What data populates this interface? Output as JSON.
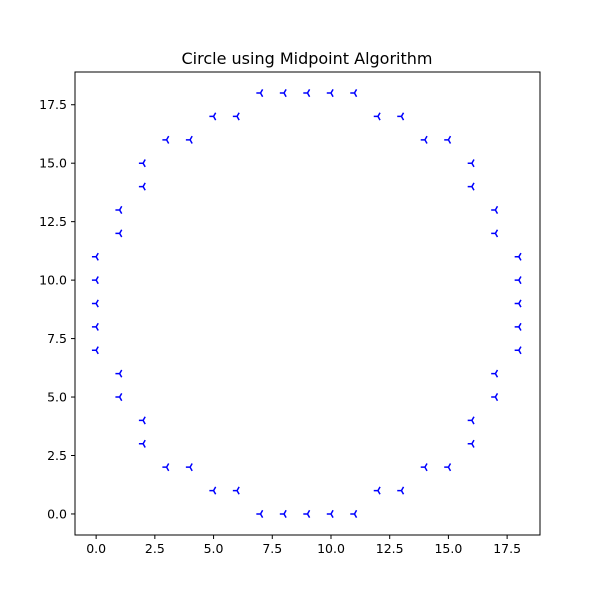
{
  "chart_data": {
    "type": "scatter",
    "title": "Circle using Midpoint Algorithm",
    "xlabel": "",
    "ylabel": "",
    "xlim": [
      -0.9,
      18.9
    ],
    "ylim": [
      -0.9,
      18.9
    ],
    "x_ticks": [
      0.0,
      2.5,
      5.0,
      7.5,
      10.0,
      12.5,
      15.0,
      17.5
    ],
    "x_tick_labels": [
      "0.0",
      "2.5",
      "5.0",
      "7.5",
      "10.0",
      "12.5",
      "15.0",
      "17.5"
    ],
    "y_ticks": [
      0.0,
      2.5,
      5.0,
      7.5,
      10.0,
      12.5,
      15.0,
      17.5
    ],
    "y_tick_labels": [
      "0.0",
      "2.5",
      "5.0",
      "7.5",
      "10.0",
      "12.5",
      "15.0",
      "17.5"
    ],
    "grid": false,
    "marker": "tri-left",
    "color": "#0000ff",
    "points": [
      [
        7,
        18
      ],
      [
        8,
        18
      ],
      [
        9,
        18
      ],
      [
        10,
        18
      ],
      [
        11,
        18
      ],
      [
        5,
        17
      ],
      [
        6,
        17
      ],
      [
        12,
        17
      ],
      [
        13,
        17
      ],
      [
        3,
        16
      ],
      [
        4,
        16
      ],
      [
        14,
        16
      ],
      [
        15,
        16
      ],
      [
        2,
        15
      ],
      [
        16,
        15
      ],
      [
        2,
        14
      ],
      [
        16,
        14
      ],
      [
        1,
        13
      ],
      [
        17,
        13
      ],
      [
        1,
        12
      ],
      [
        17,
        12
      ],
      [
        0,
        11
      ],
      [
        18,
        11
      ],
      [
        0,
        10
      ],
      [
        18,
        10
      ],
      [
        0,
        9
      ],
      [
        18,
        9
      ],
      [
        0,
        8
      ],
      [
        18,
        8
      ],
      [
        0,
        7
      ],
      [
        18,
        7
      ],
      [
        1,
        6
      ],
      [
        17,
        6
      ],
      [
        1,
        5
      ],
      [
        17,
        5
      ],
      [
        2,
        4
      ],
      [
        16,
        4
      ],
      [
        2,
        3
      ],
      [
        16,
        3
      ],
      [
        3,
        2
      ],
      [
        4,
        2
      ],
      [
        14,
        2
      ],
      [
        15,
        2
      ],
      [
        5,
        1
      ],
      [
        6,
        1
      ],
      [
        12,
        1
      ],
      [
        13,
        1
      ],
      [
        7,
        0
      ],
      [
        8,
        0
      ],
      [
        9,
        0
      ],
      [
        10,
        0
      ],
      [
        11,
        0
      ]
    ]
  }
}
